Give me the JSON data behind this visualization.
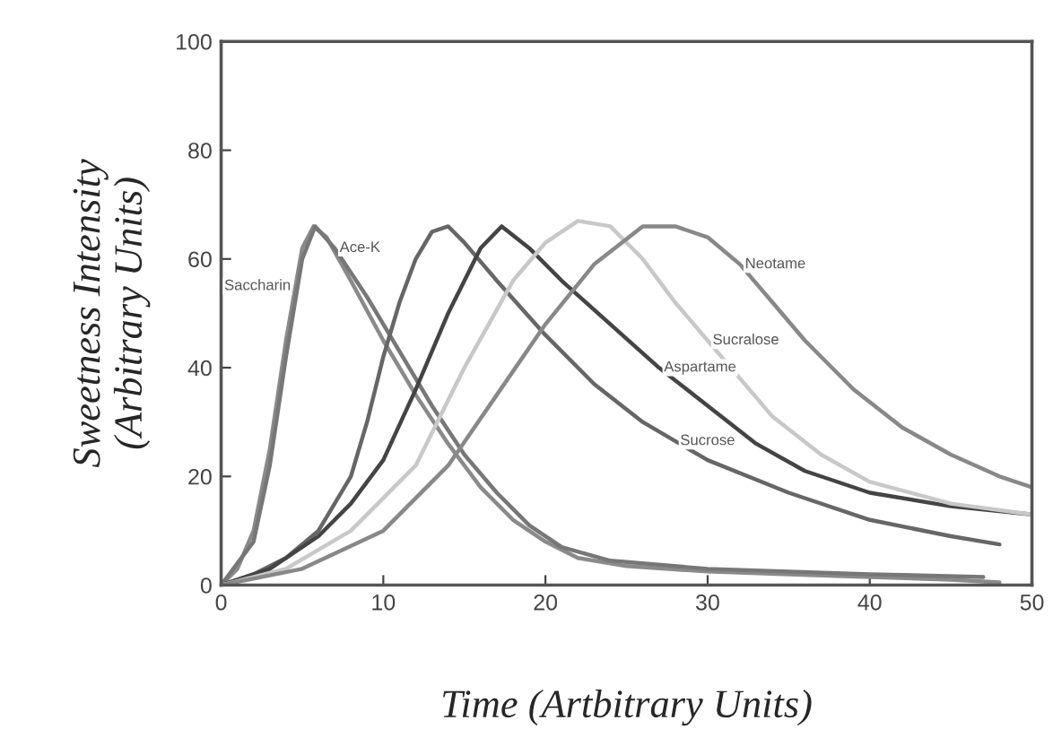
{
  "chart_data": {
    "type": "line",
    "xlabel": "Time (Artbitrary Units)",
    "ylabel": "Sweetness Intensity\n(Arbitrary Units)",
    "xlim": [
      0,
      50
    ],
    "ylim": [
      0,
      100
    ],
    "xticks": [
      0,
      10,
      20,
      30,
      40,
      50
    ],
    "yticks": [
      0,
      20,
      40,
      60,
      80,
      100
    ],
    "grid": false,
    "marker": "none",
    "line_style": "solid",
    "series": [
      {
        "color": "#8a8a8a",
        "x": [
          0,
          1,
          2,
          3,
          4,
          5,
          5.7,
          6.5,
          8,
          10,
          12,
          14,
          16,
          18,
          20,
          22,
          25,
          30,
          35,
          40,
          45,
          48
        ],
        "values": [
          0,
          3,
          10,
          25,
          45,
          62,
          66,
          64,
          56,
          45,
          35,
          26,
          18,
          12,
          8,
          5,
          3.5,
          2.5,
          2,
          1.5,
          1,
          0.5
        ]
      },
      {
        "color": "#777777",
        "x": [
          0,
          2,
          3,
          4,
          5,
          5.8,
          7,
          9,
          11,
          13,
          15,
          17,
          19,
          21,
          24,
          30,
          40,
          47
        ],
        "values": [
          0,
          8,
          22,
          42,
          60,
          66,
          62,
          53,
          43,
          33,
          24,
          17,
          11,
          7,
          4.5,
          3,
          2,
          1.5
        ]
      },
      {
        "color": "#666666",
        "x": [
          0,
          2,
          4,
          6,
          8,
          9,
          10,
          11,
          12,
          13,
          14,
          15,
          17,
          20,
          23,
          26,
          30,
          35,
          40,
          45,
          48
        ],
        "values": [
          0,
          2,
          5,
          10,
          20,
          30,
          42,
          52,
          60,
          65,
          66,
          63,
          56,
          46,
          37,
          30,
          23,
          17,
          12,
          9,
          7.5
        ]
      },
      {
        "color": "#444444",
        "x": [
          0,
          3,
          6,
          8,
          10,
          12,
          14,
          16,
          17.3,
          19,
          21,
          24,
          27,
          30,
          33,
          36,
          40,
          45,
          50
        ],
        "values": [
          0,
          3,
          9,
          15,
          23,
          36,
          50,
          62,
          66,
          62,
          56,
          48,
          40,
          33,
          26,
          21,
          17,
          14.5,
          13
        ]
      },
      {
        "color": "#c8c8c8",
        "x": [
          0,
          4,
          8,
          12,
          15,
          18,
          20,
          22,
          24,
          26,
          28,
          30,
          32,
          34,
          37,
          40,
          45,
          50
        ],
        "values": [
          0,
          3,
          10,
          22,
          40,
          56,
          63,
          67,
          66,
          60,
          52,
          45,
          38,
          31,
          24,
          19,
          15,
          13
        ]
      },
      {
        "color": "#888888",
        "x": [
          0,
          5,
          10,
          14,
          17,
          20,
          23,
          26,
          28,
          30,
          32,
          34,
          36,
          39,
          42,
          45,
          48,
          50
        ],
        "values": [
          0,
          3,
          10,
          22,
          35,
          48,
          59,
          66,
          66,
          64,
          59,
          52,
          45,
          36,
          29,
          24,
          20,
          18
        ]
      }
    ],
    "annotations": [
      {
        "text": "Saccharin",
        "x": 4.6,
        "y": 55
      },
      {
        "text": "Ace-K",
        "x": 7,
        "y": 62
      },
      {
        "text": "Sucrose",
        "x": 28,
        "y": 26.5
      },
      {
        "text": "Aspartame",
        "x": 27,
        "y": 40
      },
      {
        "text": "Sucralose",
        "x": 30,
        "y": 45
      },
      {
        "text": "Neotame",
        "x": 32,
        "y": 59
      }
    ]
  }
}
